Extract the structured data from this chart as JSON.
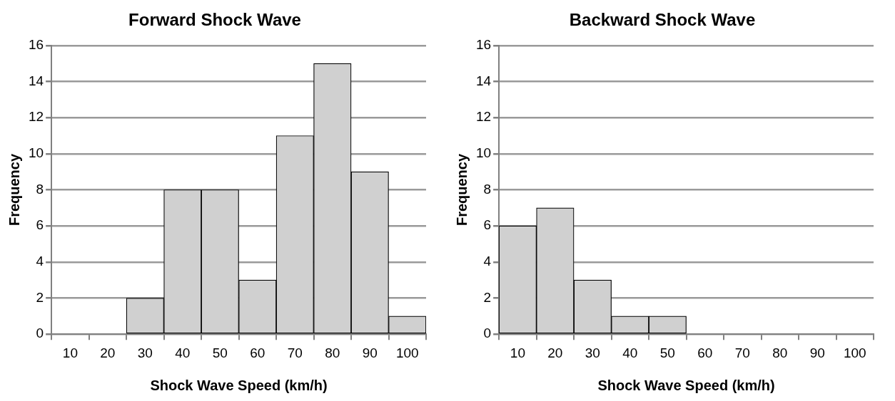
{
  "chart_data": [
    {
      "type": "bar",
      "title": "Forward Shock Wave",
      "xlabel": "Shock Wave Speed (km/h)",
      "ylabel": "Frequency",
      "categories": [
        "10",
        "20",
        "30",
        "40",
        "50",
        "60",
        "70",
        "80",
        "90",
        "100"
      ],
      "values": [
        0,
        0,
        2,
        8,
        8,
        3,
        11,
        15,
        9,
        1
      ],
      "color": "#d0d0d0",
      "ylim": [
        0,
        16
      ],
      "yticks": [
        0,
        2,
        4,
        6,
        8,
        10,
        12,
        14,
        16
      ],
      "grid": "y",
      "legend": false
    },
    {
      "type": "bar",
      "title": "Backward Shock Wave",
      "xlabel": "Shock Wave Speed (km/h)",
      "ylabel": "Frequency",
      "categories": [
        "10",
        "20",
        "30",
        "40",
        "50",
        "60",
        "70",
        "80",
        "90",
        "100"
      ],
      "values": [
        6,
        7,
        3,
        1,
        1,
        0,
        0,
        0,
        0,
        0
      ],
      "color": "#d0d0d0",
      "ylim": [
        0,
        16
      ],
      "yticks": [
        0,
        2,
        4,
        6,
        8,
        10,
        12,
        14,
        16
      ],
      "grid": "y",
      "legend": false
    }
  ]
}
